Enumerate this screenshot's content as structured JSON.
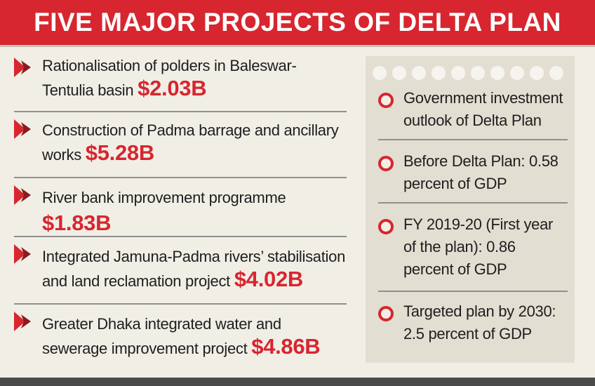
{
  "header": {
    "title": "FIVE MAJOR PROJECTS OF DELTA PLAN"
  },
  "projects": [
    {
      "text": "Rationalisation of polders in Baleswar-Tentulia basin",
      "amount": "$2.03B"
    },
    {
      "text": "Construction of Padma barrage and ancillary works",
      "amount": "$5.28B"
    },
    {
      "text": "River bank improvement programme",
      "amount": "$1.83B"
    },
    {
      "text": "Integrated Jamuna-Padma rivers’ stabilisation and land reclamation project",
      "amount": "$4.02B"
    },
    {
      "text": "Greater Dhaka integrated water and sewerage improvement project",
      "amount": "$4.86B"
    }
  ],
  "investment": [
    {
      "text": "Government investment outlook of Delta Plan"
    },
    {
      "text": "Before Delta Plan: 0.58 percent of GDP"
    },
    {
      "text": "FY 2019-20 (First year of the plan): 0.86 percent of GDP"
    },
    {
      "text": "Targeted plan by 2030: 2.5 percent of GDP"
    }
  ],
  "colors": {
    "accent": "#d7262f",
    "background": "#f1eee6",
    "panel": "#e3ded2",
    "text": "#1e1e1e"
  },
  "icons": {
    "project_bullet": "double-chevron-right-icon",
    "info_bullet": "red-ring-icon"
  }
}
